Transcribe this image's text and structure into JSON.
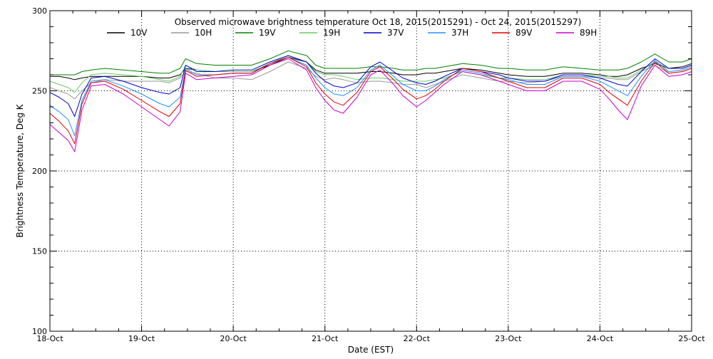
{
  "chart_data": {
    "type": "line",
    "title": "Observed microwave brightness temperature Oct 18, 2015(2015291) - Oct 24, 2015(2015297)",
    "xlabel": "Date (EST)",
    "ylabel": "Brightness Temperature, Deg K",
    "ylim": [
      100,
      300
    ],
    "xlim": [
      0,
      7
    ],
    "x_ticks": [
      0,
      1,
      2,
      3,
      4,
      5,
      6,
      7
    ],
    "x_tick_labels": [
      "18-Oct",
      "19-Oct",
      "20-Oct",
      "21-Oct",
      "22-Oct",
      "23-Oct",
      "24-Oct",
      "25-Oct"
    ],
    "y_ticks": [
      100,
      150,
      200,
      250,
      300
    ],
    "y_tick_labels": [
      "100",
      "150",
      "200",
      "250",
      "300"
    ],
    "grid": true,
    "legend_position": "top",
    "x": [
      0,
      0.1,
      0.2,
      0.27,
      0.35,
      0.45,
      0.6,
      0.8,
      1.0,
      1.2,
      1.3,
      1.42,
      1.48,
      1.6,
      1.8,
      2.0,
      2.2,
      2.4,
      2.6,
      2.8,
      2.9,
      3.0,
      3.1,
      3.2,
      3.35,
      3.5,
      3.6,
      3.75,
      3.85,
      4.0,
      4.1,
      4.2,
      4.3,
      4.5,
      4.7,
      4.9,
      5.0,
      5.2,
      5.4,
      5.6,
      5.8,
      6.0,
      6.1,
      6.2,
      6.3,
      6.45,
      6.6,
      6.75,
      6.9,
      7.0
    ],
    "series": [
      {
        "name": "10V",
        "color": "#000000",
        "values": [
          259,
          259,
          258,
          257,
          258,
          259,
          259,
          259,
          259,
          258,
          258,
          260,
          264,
          263,
          262,
          262,
          262,
          266,
          271,
          268,
          263,
          261,
          261,
          261,
          261,
          262,
          262,
          261,
          260,
          260,
          261,
          261,
          262,
          264,
          263,
          261,
          260,
          259,
          259,
          261,
          261,
          260,
          259,
          259,
          260,
          264,
          267,
          264,
          265,
          267
        ]
      },
      {
        "name": "10H",
        "color": "#999999",
        "values": [
          252,
          250,
          248,
          245,
          250,
          255,
          257,
          256,
          256,
          256,
          255,
          258,
          262,
          261,
          258,
          258,
          257,
          262,
          268,
          264,
          259,
          257,
          258,
          257,
          255,
          256,
          256,
          255,
          254,
          254,
          252,
          254,
          256,
          260,
          258,
          256,
          256,
          255,
          256,
          259,
          259,
          258,
          258,
          257,
          257,
          262,
          266,
          261,
          262,
          264
        ]
      },
      {
        "name": "19V",
        "color": "#008000",
        "values": [
          260,
          260,
          260,
          260,
          262,
          263,
          264,
          263,
          262,
          261,
          261,
          264,
          270,
          267,
          266,
          266,
          266,
          270,
          275,
          272,
          266,
          264,
          264,
          264,
          264,
          265,
          265,
          264,
          263,
          263,
          264,
          264,
          265,
          267,
          266,
          264,
          264,
          263,
          263,
          265,
          264,
          263,
          263,
          263,
          264,
          268,
          273,
          268,
          268,
          270
        ]
      },
      {
        "name": "19H",
        "color": "#66cc66",
        "values": [
          256,
          254,
          252,
          249,
          255,
          260,
          261,
          260,
          259,
          257,
          256,
          259,
          266,
          263,
          262,
          262,
          262,
          267,
          272,
          268,
          262,
          260,
          260,
          259,
          257,
          258,
          258,
          257,
          256,
          256,
          256,
          257,
          258,
          262,
          260,
          258,
          258,
          257,
          257,
          260,
          260,
          259,
          259,
          258,
          258,
          263,
          268,
          264,
          264,
          266
        ]
      },
      {
        "name": "37V",
        "color": "#0000cc",
        "values": [
          249,
          246,
          242,
          234,
          248,
          258,
          259,
          256,
          252,
          249,
          248,
          252,
          266,
          262,
          262,
          263,
          263,
          268,
          272,
          268,
          261,
          256,
          253,
          252,
          255,
          265,
          268,
          262,
          258,
          255,
          254,
          256,
          259,
          264,
          262,
          260,
          258,
          256,
          256,
          260,
          260,
          258,
          256,
          254,
          253,
          262,
          270,
          264,
          264,
          266
        ]
      },
      {
        "name": "37H",
        "color": "#1e90ff",
        "values": [
          241,
          237,
          232,
          222,
          244,
          256,
          257,
          253,
          248,
          242,
          240,
          246,
          264,
          260,
          260,
          261,
          261,
          267,
          271,
          266,
          258,
          252,
          248,
          247,
          252,
          263,
          266,
          259,
          254,
          250,
          250,
          253,
          257,
          263,
          261,
          258,
          257,
          254,
          254,
          259,
          259,
          256,
          253,
          250,
          247,
          259,
          269,
          262,
          263,
          265
        ]
      },
      {
        "name": "89V",
        "color": "#e00000",
        "values": [
          236,
          231,
          225,
          217,
          242,
          255,
          256,
          251,
          244,
          237,
          234,
          242,
          263,
          259,
          260,
          261,
          261,
          267,
          271,
          265,
          255,
          248,
          243,
          241,
          249,
          262,
          265,
          257,
          251,
          245,
          247,
          251,
          256,
          264,
          262,
          258,
          256,
          252,
          252,
          258,
          258,
          254,
          249,
          245,
          241,
          256,
          268,
          261,
          262,
          264
        ]
      },
      {
        "name": "89H",
        "color": "#cc00cc",
        "values": [
          229,
          224,
          219,
          212,
          238,
          253,
          254,
          248,
          240,
          232,
          228,
          237,
          261,
          257,
          258,
          259,
          260,
          266,
          270,
          263,
          252,
          244,
          238,
          236,
          246,
          260,
          263,
          254,
          247,
          240,
          244,
          249,
          254,
          262,
          260,
          256,
          254,
          250,
          250,
          256,
          256,
          251,
          245,
          238,
          232,
          253,
          266,
          259,
          260,
          262
        ]
      }
    ]
  }
}
